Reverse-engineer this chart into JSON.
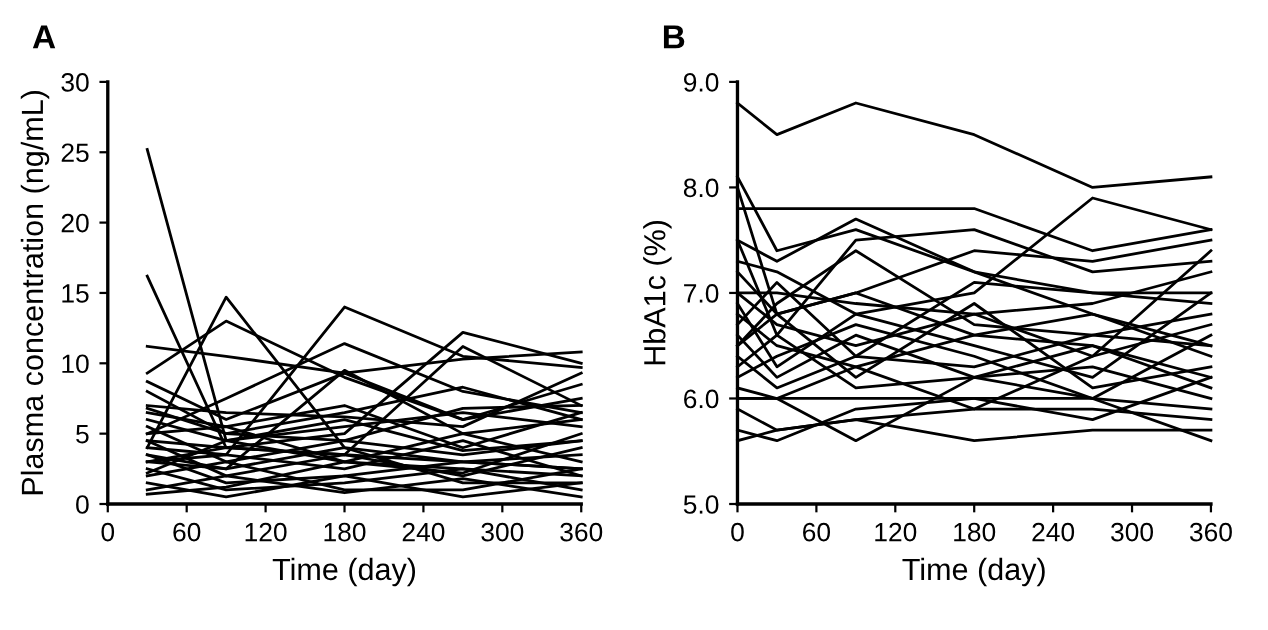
{
  "chart_data": [
    {
      "type": "line",
      "title": "A",
      "xlabel": "Time (day)",
      "ylabel": "Plasma concentration (ng/mL)",
      "x": [
        30,
        90,
        180,
        270,
        360
      ],
      "xlim": [
        0,
        360
      ],
      "xticks": [
        0,
        60,
        120,
        180,
        240,
        300,
        360
      ],
      "ylim": [
        0,
        30
      ],
      "yticks": [
        0,
        5,
        10,
        15,
        20,
        25,
        30
      ],
      "grid": false,
      "marker": "none",
      "line_style": "solid",
      "series": [
        {
          "color": "#000000",
          "values": [
            25.2,
            4.5,
            3.0,
            2.5,
            2.0
          ]
        },
        {
          "color": "#000000",
          "values": [
            16.2,
            4.0,
            3.5,
            3.0,
            2.5
          ]
        },
        {
          "color": "#000000",
          "values": [
            11.2,
            10.5,
            9.3,
            10.3,
            10.8
          ]
        },
        {
          "color": "#000000",
          "values": [
            9.3,
            13.0,
            9.0,
            6.0,
            7.5
          ]
        },
        {
          "color": "#000000",
          "values": [
            4.0,
            14.7,
            4.0,
            3.0,
            2.5
          ]
        },
        {
          "color": "#000000",
          "values": [
            3.0,
            3.5,
            14.0,
            10.5,
            9.7
          ]
        },
        {
          "color": "#000000",
          "values": [
            5.0,
            7.5,
            11.4,
            8.0,
            6.5
          ]
        },
        {
          "color": "#000000",
          "values": [
            3.5,
            2.5,
            9.5,
            5.0,
            6.0
          ]
        },
        {
          "color": "#000000",
          "values": [
            4.5,
            4.0,
            5.0,
            12.2,
            10.0
          ]
        },
        {
          "color": "#000000",
          "values": [
            3.0,
            4.0,
            3.5,
            11.2,
            7.0
          ]
        },
        {
          "color": "#000000",
          "values": [
            8.7,
            6.0,
            9.3,
            6.0,
            8.5
          ]
        },
        {
          "color": "#000000",
          "values": [
            8.0,
            5.0,
            6.5,
            8.3,
            6.0
          ]
        },
        {
          "color": "#000000",
          "values": [
            7.0,
            6.5,
            6.2,
            5.5,
            9.3
          ]
        },
        {
          "color": "#000000",
          "values": [
            6.5,
            5.5,
            7.0,
            4.0,
            6.5
          ]
        },
        {
          "color": "#000000",
          "values": [
            6.0,
            4.5,
            5.5,
            6.5,
            5.5
          ]
        },
        {
          "color": "#000000",
          "values": [
            5.5,
            3.0,
            4.5,
            3.5,
            4.5
          ]
        },
        {
          "color": "#000000",
          "values": [
            5.0,
            5.5,
            3.0,
            5.0,
            3.0
          ]
        },
        {
          "color": "#000000",
          "values": [
            4.5,
            2.0,
            3.5,
            2.0,
            4.0
          ]
        },
        {
          "color": "#000000",
          "values": [
            4.0,
            3.5,
            2.5,
            4.5,
            2.0
          ]
        },
        {
          "color": "#000000",
          "values": [
            3.5,
            1.5,
            2.0,
            3.0,
            3.5
          ]
        },
        {
          "color": "#000000",
          "values": [
            3.0,
            2.5,
            4.0,
            1.5,
            1.5
          ]
        },
        {
          "color": "#000000",
          "values": [
            2.5,
            1.0,
            1.5,
            2.5,
            1.0
          ]
        },
        {
          "color": "#000000",
          "values": [
            2.0,
            3.0,
            1.0,
            1.0,
            2.5
          ]
        },
        {
          "color": "#000000",
          "values": [
            1.5,
            0.5,
            2.0,
            0.5,
            1.5
          ]
        },
        {
          "color": "#000000",
          "values": [
            1.0,
            2.0,
            0.8,
            1.8,
            0.5
          ]
        },
        {
          "color": "#000000",
          "values": [
            0.7,
            1.2,
            3.0,
            2.2,
            5.0
          ]
        },
        {
          "color": "#000000",
          "values": [
            6.8,
            5.0,
            4.5,
            6.8,
            7.0
          ]
        },
        {
          "color": "#000000",
          "values": [
            2.2,
            4.5,
            6.0,
            3.8,
            4.5
          ]
        }
      ]
    },
    {
      "type": "line",
      "title": "B",
      "xlabel": "Time (day)",
      "ylabel": "HbA1c (%)",
      "x": [
        0,
        30,
        90,
        180,
        270,
        360
      ],
      "xlim": [
        0,
        360
      ],
      "xticks": [
        0,
        60,
        120,
        180,
        240,
        300,
        360
      ],
      "ylim": [
        5.0,
        9.0
      ],
      "yticks": [
        {
          "value": 5,
          "label": "5.0"
        },
        {
          "value": 6,
          "label": "6.0"
        },
        {
          "value": 7,
          "label": "7.0"
        },
        {
          "value": 8,
          "label": "8.0"
        },
        {
          "value": 9,
          "label": "9.0"
        }
      ],
      "grid": false,
      "marker": "none",
      "line_style": "solid",
      "series": [
        {
          "color": "#000000",
          "values": [
            8.8,
            8.5,
            8.8,
            8.5,
            8.0,
            8.1
          ]
        },
        {
          "color": "#000000",
          "values": [
            8.1,
            7.4,
            7.6,
            7.2,
            6.8,
            6.5
          ]
        },
        {
          "color": "#000000",
          "values": [
            7.8,
            7.8,
            7.8,
            7.8,
            7.4,
            7.6
          ]
        },
        {
          "color": "#000000",
          "values": [
            8.0,
            6.8,
            7.0,
            6.6,
            6.5,
            6.2
          ]
        },
        {
          "color": "#000000",
          "values": [
            7.5,
            7.3,
            7.7,
            7.2,
            7.0,
            7.0
          ]
        },
        {
          "color": "#000000",
          "values": [
            7.5,
            6.6,
            7.5,
            7.6,
            7.2,
            7.3
          ]
        },
        {
          "color": "#000000",
          "values": [
            7.3,
            7.2,
            6.8,
            7.0,
            7.9,
            7.6
          ]
        },
        {
          "color": "#000000",
          "values": [
            7.2,
            6.8,
            7.0,
            7.4,
            7.3,
            7.5
          ]
        },
        {
          "color": "#000000",
          "values": [
            7.0,
            6.7,
            6.5,
            6.8,
            6.4,
            6.7
          ]
        },
        {
          "color": "#000000",
          "values": [
            6.9,
            6.3,
            6.8,
            6.5,
            6.2,
            7.0
          ]
        },
        {
          "color": "#000000",
          "values": [
            6.8,
            6.5,
            6.3,
            6.6,
            6.8,
            6.4
          ]
        },
        {
          "color": "#000000",
          "values": [
            6.6,
            6.2,
            6.6,
            6.2,
            6.5,
            6.1
          ]
        },
        {
          "color": "#000000",
          "values": [
            6.5,
            6.8,
            6.2,
            6.9,
            6.1,
            6.3
          ]
        },
        {
          "color": "#000000",
          "values": [
            6.4,
            6.1,
            6.4,
            6.3,
            6.6,
            6.8
          ]
        },
        {
          "color": "#000000",
          "values": [
            6.3,
            6.6,
            6.1,
            6.2,
            6.3,
            6.0
          ]
        },
        {
          "color": "#000000",
          "values": [
            6.2,
            6.4,
            6.7,
            6.4,
            6.0,
            6.6
          ]
        },
        {
          "color": "#000000",
          "values": [
            6.0,
            6.0,
            6.0,
            6.0,
            5.8,
            6.2
          ]
        },
        {
          "color": "#000000",
          "values": [
            6.0,
            6.0,
            5.6,
            6.2,
            6.0,
            5.6
          ]
        },
        {
          "color": "#000000",
          "values": [
            5.9,
            5.7,
            5.8,
            5.6,
            5.7,
            5.7
          ]
        },
        {
          "color": "#000000",
          "values": [
            5.7,
            5.6,
            5.9,
            6.0,
            6.0,
            5.9
          ]
        },
        {
          "color": "#000000",
          "values": [
            5.6,
            5.7,
            5.8,
            5.9,
            5.9,
            5.8
          ]
        },
        {
          "color": "#000000",
          "values": [
            7.0,
            7.0,
            6.9,
            6.8,
            6.9,
            7.2
          ]
        },
        {
          "color": "#000000",
          "values": [
            6.7,
            7.1,
            6.4,
            7.1,
            7.0,
            6.9
          ]
        },
        {
          "color": "#000000",
          "values": [
            6.5,
            6.9,
            7.4,
            6.7,
            6.6,
            6.5
          ]
        },
        {
          "color": "#000000",
          "values": [
            6.1,
            6.0,
            6.3,
            5.9,
            6.4,
            7.4
          ]
        }
      ]
    }
  ]
}
